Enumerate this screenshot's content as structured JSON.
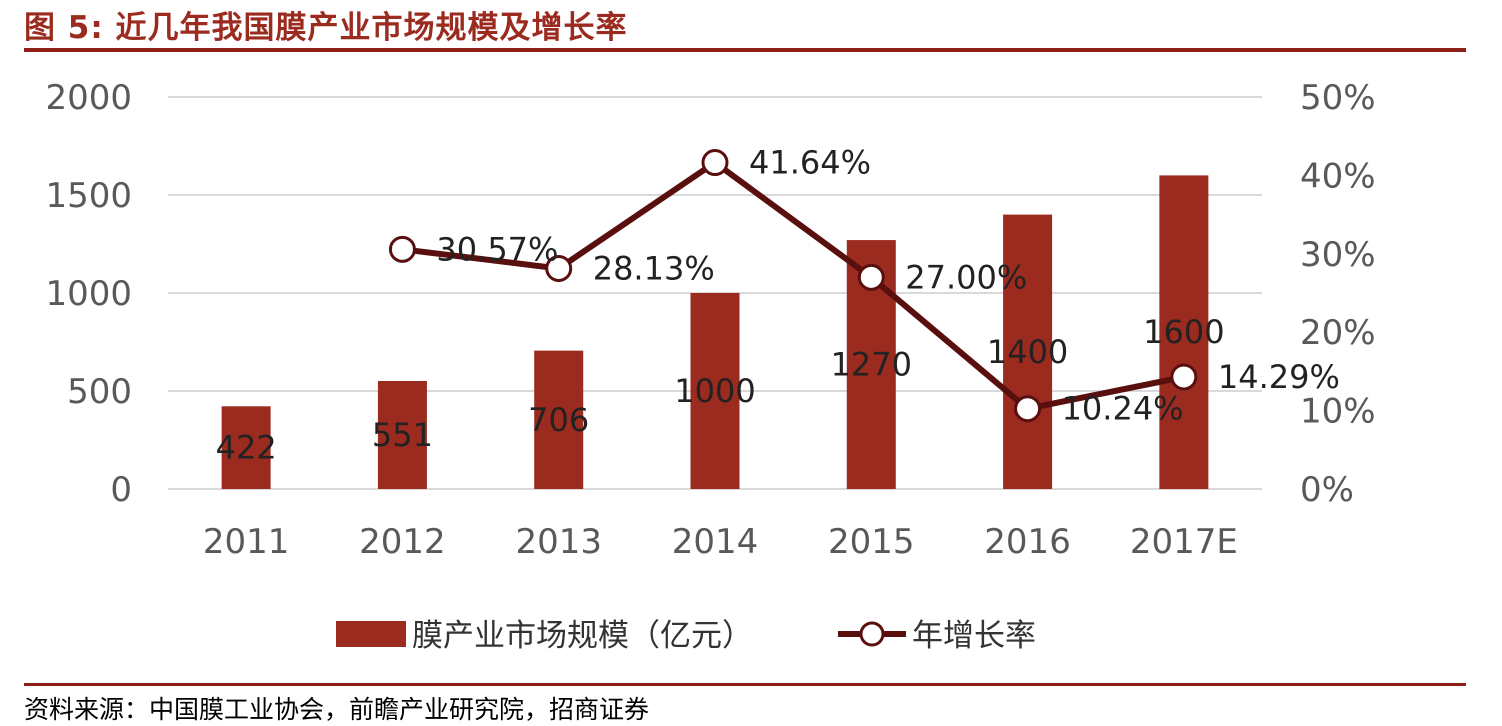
{
  "figure": {
    "title": "图 5:  近几年我国膜产业市场规模及增长率",
    "source": "资料来源：中国膜工业协会，前瞻产业研究院，招商证券"
  },
  "colors": {
    "bar": "#9b2a1f",
    "line": "#5a0f0f",
    "marker_fill": "#ffffff",
    "grid": "#d9d9d9",
    "rule": "#8c1f17"
  },
  "chart_data": {
    "type": "bar",
    "categories": [
      "2011",
      "2012",
      "2013",
      "2014",
      "2015",
      "2016",
      "2017E"
    ],
    "series": [
      {
        "name": "膜产业市场规模（亿元）",
        "type": "bar",
        "axis": "left",
        "values": [
          422,
          551,
          706,
          1000,
          1270,
          1400,
          1600
        ],
        "labels": [
          "422",
          "551",
          "706",
          "1000",
          "1270",
          "1400",
          "1600"
        ]
      },
      {
        "name": "年增长率",
        "type": "line",
        "axis": "right",
        "values": [
          null,
          30.57,
          28.13,
          41.64,
          27.0,
          10.24,
          14.29
        ],
        "labels": [
          "",
          "30.57%",
          "28.13%",
          "41.64%",
          "27.00%",
          "10.24%",
          "14.29%"
        ]
      }
    ],
    "y_left": {
      "range": [
        0,
        2000
      ],
      "ticks": [
        "0",
        "500",
        "1000",
        "1500",
        "2000"
      ]
    },
    "y_right": {
      "range": [
        0,
        50
      ],
      "ticks": [
        "0%",
        "10%",
        "20%",
        "30%",
        "40%",
        "50%"
      ]
    },
    "grid": true,
    "legend_position": "bottom"
  }
}
